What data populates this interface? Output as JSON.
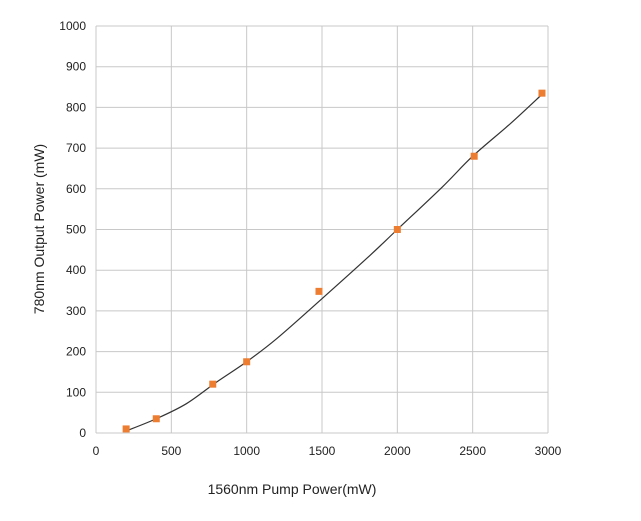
{
  "chart_data": {
    "type": "scatter",
    "title": "",
    "xlabel": "1560nm Pump Power(mW)",
    "ylabel": "780nm Output Power (mW)",
    "xlim": [
      0,
      3000
    ],
    "ylim": [
      0,
      1000
    ],
    "xticks": [
      "0",
      "500",
      "1000",
      "1500",
      "2000",
      "2500",
      "3000"
    ],
    "yticks": [
      "0",
      "100",
      "200",
      "300",
      "400",
      "500",
      "600",
      "700",
      "800",
      "900",
      "1000"
    ],
    "grid": true,
    "legend": "none",
    "series": [
      {
        "marker": "square",
        "color": "#ED7D31",
        "points": [
          {
            "x": 200,
            "y": 10
          },
          {
            "x": 400,
            "y": 35
          },
          {
            "x": 775,
            "y": 120
          },
          {
            "x": 1000,
            "y": 175
          },
          {
            "x": 1480,
            "y": 348
          },
          {
            "x": 2000,
            "y": 500
          },
          {
            "x": 2510,
            "y": 680
          },
          {
            "x": 2960,
            "y": 835
          }
        ]
      }
    ],
    "trendline": {
      "color": "#333333",
      "points": [
        {
          "x": 200,
          "y": 5
        },
        {
          "x": 400,
          "y": 35
        },
        {
          "x": 600,
          "y": 72
        },
        {
          "x": 800,
          "y": 125
        },
        {
          "x": 1000,
          "y": 175
        },
        {
          "x": 1200,
          "y": 232
        },
        {
          "x": 1500,
          "y": 330
        },
        {
          "x": 1800,
          "y": 430
        },
        {
          "x": 2000,
          "y": 500
        },
        {
          "x": 2300,
          "y": 605
        },
        {
          "x": 2500,
          "y": 680
        },
        {
          "x": 2750,
          "y": 760
        },
        {
          "x": 2960,
          "y": 832
        }
      ]
    },
    "colors": {
      "grid": "#C8C8C8",
      "axis_text": "#222222"
    }
  }
}
